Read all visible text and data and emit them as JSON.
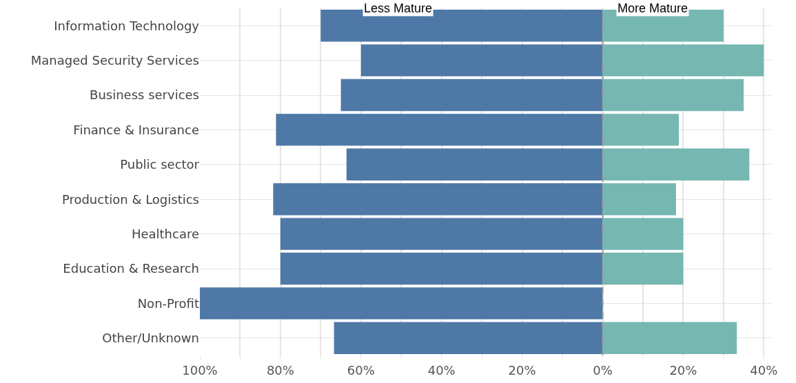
{
  "chart_data": {
    "type": "bar",
    "orientation": "horizontal",
    "stacked": true,
    "categories": [
      "Information Technology",
      "Managed Security Services",
      "Business services",
      "Finance & Insurance",
      "Public sector",
      "Production & Logistics",
      "Healthcare",
      "Education & Research",
      "Non-Profit",
      "Other/Unknown"
    ],
    "series": [
      {
        "color": "#4e79a7",
        "values": [
          -70,
          -60,
          -65,
          -81.1,
          -63.6,
          -81.8,
          -80,
          -80,
          -100,
          -66.7
        ]
      },
      {
        "color": "#76b7b2",
        "values": [
          30,
          40,
          35,
          18.9,
          36.4,
          18.2,
          20,
          20,
          0,
          33.3
        ]
      }
    ],
    "xlim": [
      -100,
      42
    ],
    "xticks": [
      {
        "value": -100,
        "label": "100%"
      },
      {
        "value": -90,
        "label": null
      },
      {
        "value": -80,
        "label": "80%"
      },
      {
        "value": -70,
        "label": null
      },
      {
        "value": -60,
        "label": "60%"
      },
      {
        "value": -50,
        "label": null
      },
      {
        "value": -40,
        "label": "40%"
      },
      {
        "value": -30,
        "label": null
      },
      {
        "value": -20,
        "label": "20%"
      },
      {
        "value": -10,
        "label": null
      },
      {
        "value": 0,
        "label": "0%"
      },
      {
        "value": 10,
        "label": null
      },
      {
        "value": 20,
        "label": "20%"
      },
      {
        "value": 30,
        "label": null
      },
      {
        "value": 40,
        "label": "40%"
      }
    ],
    "ref_lines": [
      {
        "axis": "x",
        "value": 0,
        "color": "#999999",
        "line_style": "dashed"
      }
    ],
    "annotations": [
      "Less Mature",
      "More Mature"
    ],
    "grid": true
  }
}
